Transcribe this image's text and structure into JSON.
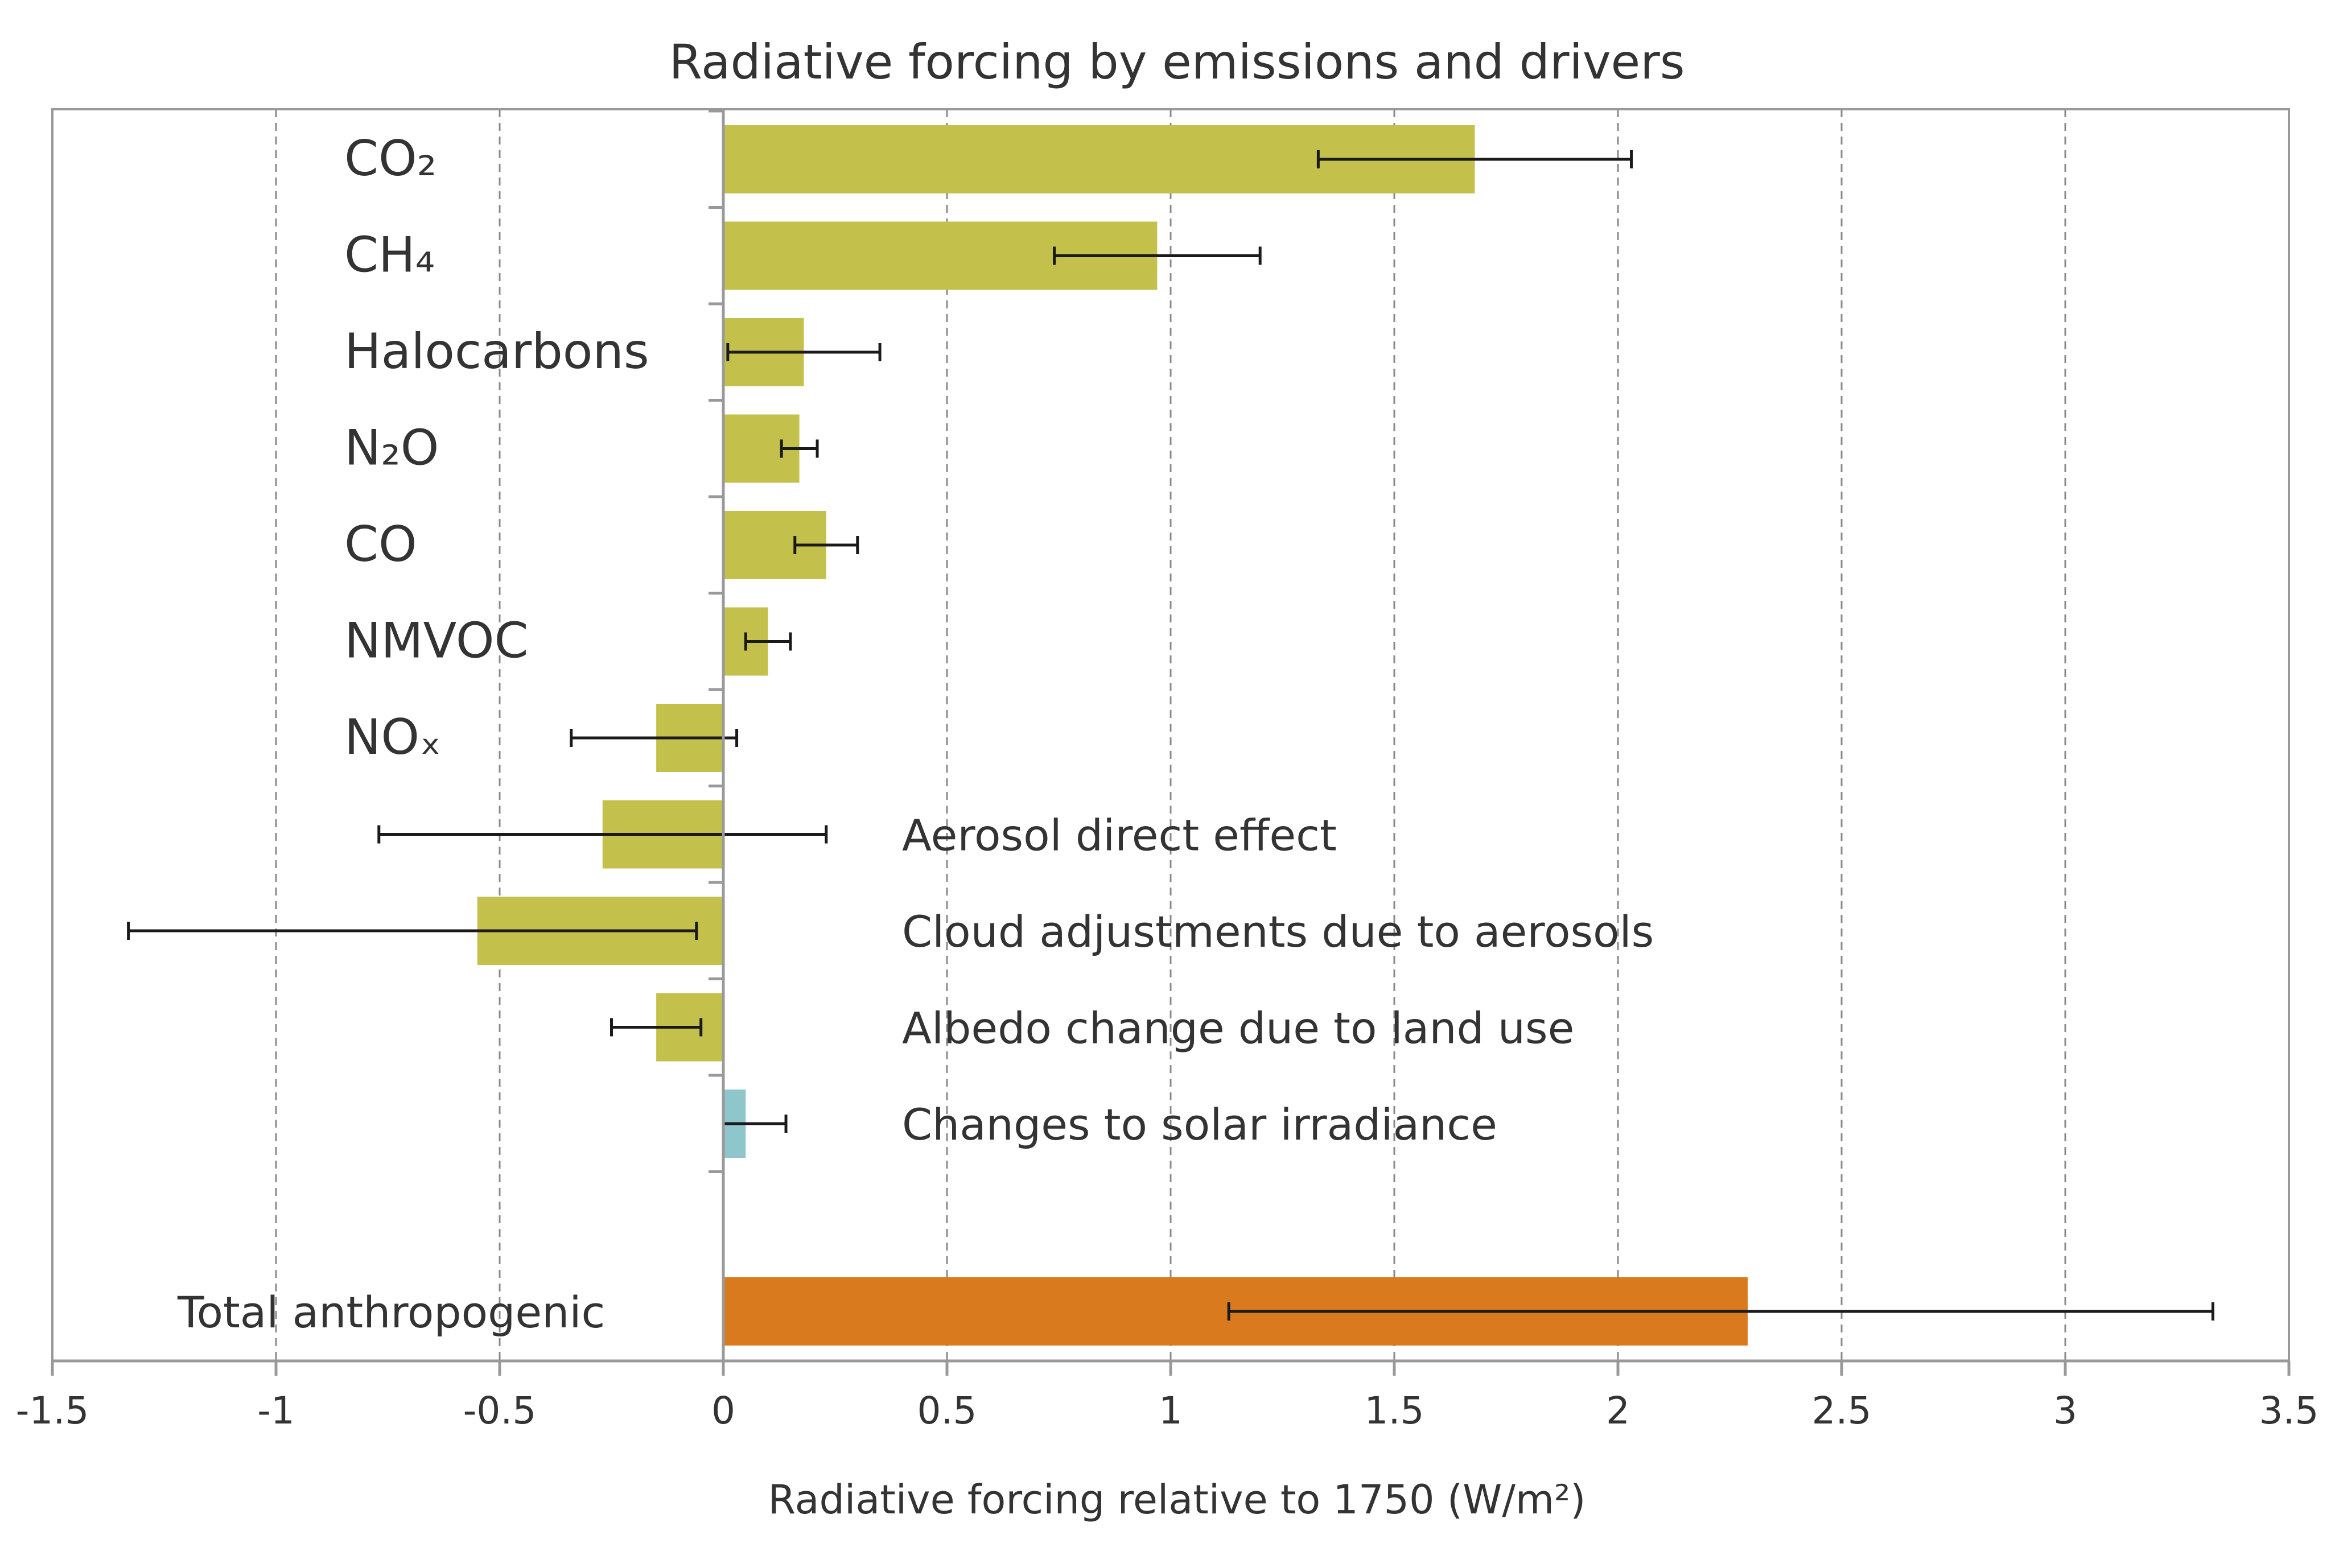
{
  "chart_data": {
    "type": "bar",
    "orientation": "horizontal",
    "title": "Radiative forcing by emissions and drivers",
    "xlabel": "Radiative forcing relative to 1750 (W/m²)",
    "ylabel": "",
    "xlim": [
      -1.5,
      3.5
    ],
    "x_ticks": [
      "-1.5",
      "-1",
      "-0.5",
      "0",
      "0.5",
      "1",
      "1.5",
      "2",
      "2.5",
      "3",
      "3.5"
    ],
    "grid": "vertical dashed",
    "bars": [
      {
        "label": "CO₂",
        "value": 1.68,
        "err_low": 1.33,
        "err_high": 2.03,
        "color": "#c4c04c",
        "label_side": "left"
      },
      {
        "label": "CH₄",
        "value": 0.97,
        "err_low": 0.74,
        "err_high": 1.2,
        "color": "#c4c04c",
        "label_side": "left"
      },
      {
        "label": "Halocarbons",
        "value": 0.18,
        "err_low": 0.01,
        "err_high": 0.35,
        "color": "#c4c04c",
        "label_side": "left"
      },
      {
        "label": "N₂O",
        "value": 0.17,
        "err_low": 0.13,
        "err_high": 0.21,
        "color": "#c4c04c",
        "label_side": "left"
      },
      {
        "label": "CO",
        "value": 0.23,
        "err_low": 0.16,
        "err_high": 0.3,
        "color": "#c4c04c",
        "label_side": "left"
      },
      {
        "label": "NMVOC",
        "value": 0.1,
        "err_low": 0.05,
        "err_high": 0.15,
        "color": "#c4c04c",
        "label_side": "left"
      },
      {
        "label": "NOₓ",
        "value": -0.15,
        "err_low": -0.34,
        "err_high": 0.03,
        "color": "#c4c04c",
        "label_side": "left"
      },
      {
        "label": "Aerosol direct effect",
        "value": -0.27,
        "err_low": -0.77,
        "err_high": 0.23,
        "color": "#c4c04c",
        "label_side": "right"
      },
      {
        "label": "Cloud adjustments due to aerosols",
        "value": -0.55,
        "err_low": -1.33,
        "err_high": -0.06,
        "color": "#c4c04c",
        "label_side": "right"
      },
      {
        "label": "Albedo change due to land use",
        "value": -0.15,
        "err_low": -0.25,
        "err_high": -0.05,
        "color": "#c4c04c",
        "label_side": "right"
      },
      {
        "label": "Changes to solar irradiance",
        "value": 0.05,
        "err_low": 0.0,
        "err_high": 0.14,
        "color": "#8fc6cc",
        "label_side": "right"
      },
      {
        "label": "Total anthropogenic",
        "value": 2.29,
        "err_low": 1.13,
        "err_high": 3.33,
        "color": "#d87a1d",
        "label_side": "left"
      }
    ]
  }
}
